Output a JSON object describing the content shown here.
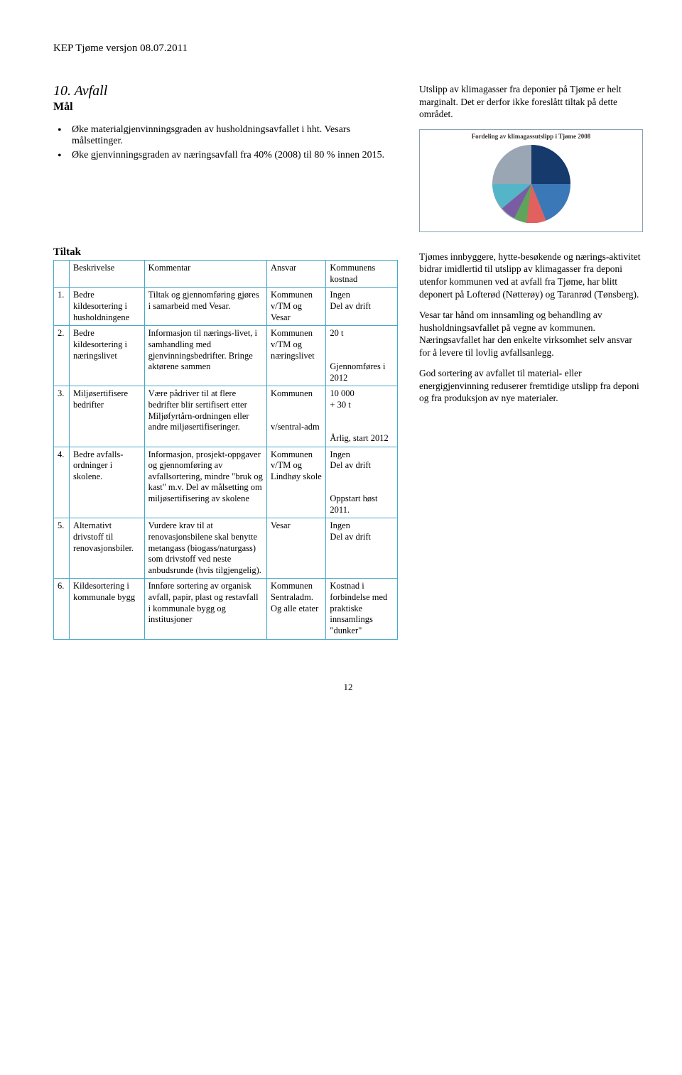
{
  "doc_header": "KEP Tjøme versjon 08.07.2011",
  "section_title": "10. Avfall",
  "mal_heading": "Mål",
  "bullets": [
    "Øke materialgjenvinningsgraden av husholdningsavfallet i hht. Vesars målsettinger.",
    "Øke gjenvinningsgraden av næringsavfall fra 40% (2008) til 80 % innen 2015."
  ],
  "tiltak_heading": "Tiltak",
  "table": {
    "header": [
      "",
      "Beskrivelse",
      "Kommentar",
      "Ansvar",
      "Kommunens kostnad"
    ],
    "rows": [
      [
        "1.",
        "Bedre kildesortering i husholdningene",
        "Tiltak og gjennomføring gjøres i samarbeid med Vesar.",
        "Kommunen v/TM og Vesar",
        "Ingen\nDel av drift"
      ],
      [
        "2.",
        "Bedre kildesortering i næringslivet",
        "Informasjon til nærings-livet, i samhandling med gjenvinningsbedrifter. Bringe aktørene sammen",
        "Kommunen v/TM og næringslivet",
        "20 t\n\nGjennomføres i  2012"
      ],
      [
        "3.",
        "Miljøsertifisere bedrifter",
        "Være pådriver til at flere bedrifter blir sertifisert etter Miljøfyrtårn-ordningen eller andre miljøsertifiseringer.",
        "Kommunen\n\nv/sentral-adm",
        "10 000\n+ 30 t\n\nÅrlig, start 2012"
      ],
      [
        "4.",
        "Bedre avfalls-ordninger i skolene.",
        "Informasjon, prosjekt-oppgaver og gjennomføring av avfallsortering, mindre \"bruk og kast\" m.v. Del av målsetting om miljøsertifisering av skolene",
        "Kommunen v/TM og Lindhøy skole",
        "Ingen\nDel av drift\n\nOppstart høst 2011."
      ],
      [
        "5.",
        "Alternativt drivstoff til renovasjonsbiler.",
        "Vurdere krav til at renovasjonsbilene skal benytte metangass (biogass/naturgass) som drivstoff ved neste anbudsrunde (hvis tilgjengelig).",
        "Vesar",
        "Ingen\nDel av drift"
      ],
      [
        "6.",
        "Kildesortering i kommunale bygg",
        "Innføre sortering av organisk avfall, papir, plast og restavfall i kommunale bygg og institusjoner",
        "Kommunen Sentraladm. Og alle etater",
        "Kostnad i forbindelse med praktiske innsamlings \"dunker\""
      ]
    ]
  },
  "right_intro": "Utslipp av klimagasser fra deponier på Tjøme er helt marginalt. Det er derfor ikke foreslått tiltak på dette området.",
  "pie": {
    "title": "Fordeling av klimagassutslipp i Tjøme 2008",
    "colors": [
      "#9aa6b3",
      "#153a6b",
      "#3a78b8",
      "#e0615d",
      "#5fa45a",
      "#7a5ca5",
      "#55b5c8",
      "#e09a3a"
    ]
  },
  "right_paragraphs": [
    "Tjømes innbyggere, hytte-besøkende og nærings-aktivitet bidrar imidlertid til utslipp av klimagasser fra deponi utenfor kommunen ved at avfall fra Tjøme, har blitt deponert på Lofterød (Nøtterøy) og Taranrød (Tønsberg).",
    "Vesar tar hånd om innsamling og behandling av husholdningsavfallet på vegne av kommunen. Næringsavfallet har den enkelte virksomhet selv ansvar for å levere til lovlig avfallsanlegg.",
    "God sortering av avfallet til material- eller energigjenvinning reduserer fremtidige utslipp fra deponi og fra produksjon av nye materialer."
  ],
  "page_number": "12"
}
